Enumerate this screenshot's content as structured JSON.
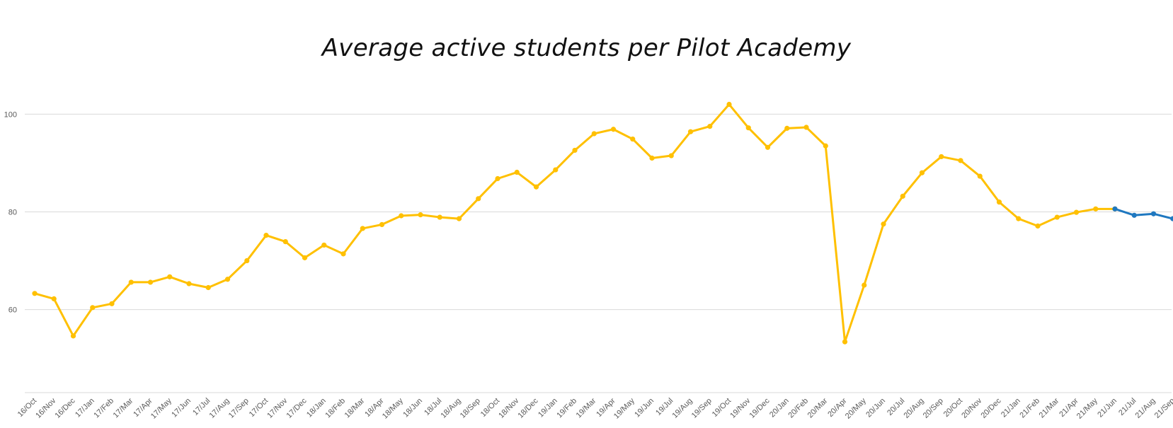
{
  "chart_data": {
    "type": "line",
    "title": "Average active students per Pilot Academy",
    "xlabel": "",
    "ylabel": "",
    "ylim": [
      43,
      107
    ],
    "yticks": [
      60,
      80,
      100
    ],
    "grid": true,
    "categories": [
      "16/Oct",
      "16/Nov",
      "16/Dec",
      "17/Jan",
      "17/Feb",
      "17/Mar",
      "17/Apr",
      "17/May",
      "17/Jun",
      "17/Jul",
      "17/Aug",
      "17/Sep",
      "17/Oct",
      "17/Nov",
      "17/Dec",
      "18/Jan",
      "18/Feb",
      "18/Mar",
      "18/Apr",
      "18/May",
      "18/Jun",
      "18/Jul",
      "18/Aug",
      "18/Sep",
      "18/Oct",
      "18/Nov",
      "18/Dec",
      "19/Jan",
      "19/Feb",
      "19/Mar",
      "19/Apr",
      "19/May",
      "19/Jun",
      "19/Jul",
      "19/Aug",
      "19/Sep",
      "19/Oct",
      "19/Nov",
      "19/Dec",
      "20/Jan",
      "20/Feb",
      "20/Mar",
      "20/Apr",
      "20/May",
      "20/Jun",
      "20/Jul",
      "20/Aug",
      "20/Sep",
      "20/Oct",
      "20/Nov",
      "20/Dec",
      "21/Jan",
      "21/Feb",
      "21/Mar",
      "21/Apr",
      "21/May",
      "21/Jun",
      "21/Jul",
      "21/Aug",
      "21/Sep"
    ],
    "series": [
      {
        "color": "#FFC000",
        "values": [
          63.3,
          62.2,
          54.6,
          60.4,
          61.2,
          65.6,
          65.6,
          66.7,
          65.3,
          64.5,
          66.2,
          70.0,
          75.2,
          73.9,
          70.6,
          73.2,
          71.4,
          76.6,
          77.4,
          79.2,
          79.4,
          78.9,
          78.6,
          82.7,
          86.8,
          88.1,
          85.1,
          88.6,
          92.6,
          96.0,
          96.9,
          94.9,
          91.0,
          91.5,
          96.4,
          97.5,
          102.0,
          97.2,
          93.2,
          97.1,
          97.3,
          93.5,
          53.4,
          65.0,
          77.5,
          83.2,
          88.0,
          91.3,
          90.5,
          87.3,
          82.0,
          78.6,
          77.1,
          78.9,
          79.9,
          80.6,
          80.6,
          null,
          null,
          null
        ]
      },
      {
        "color": "#1F78C0",
        "values": [
          null,
          null,
          null,
          null,
          null,
          null,
          null,
          null,
          null,
          null,
          null,
          null,
          null,
          null,
          null,
          null,
          null,
          null,
          null,
          null,
          null,
          null,
          null,
          null,
          null,
          null,
          null,
          null,
          null,
          null,
          null,
          null,
          null,
          null,
          null,
          null,
          null,
          null,
          null,
          null,
          null,
          null,
          null,
          null,
          null,
          null,
          null,
          null,
          null,
          null,
          null,
          null,
          null,
          null,
          null,
          null,
          80.6,
          79.3,
          79.6,
          78.6
        ]
      }
    ]
  }
}
